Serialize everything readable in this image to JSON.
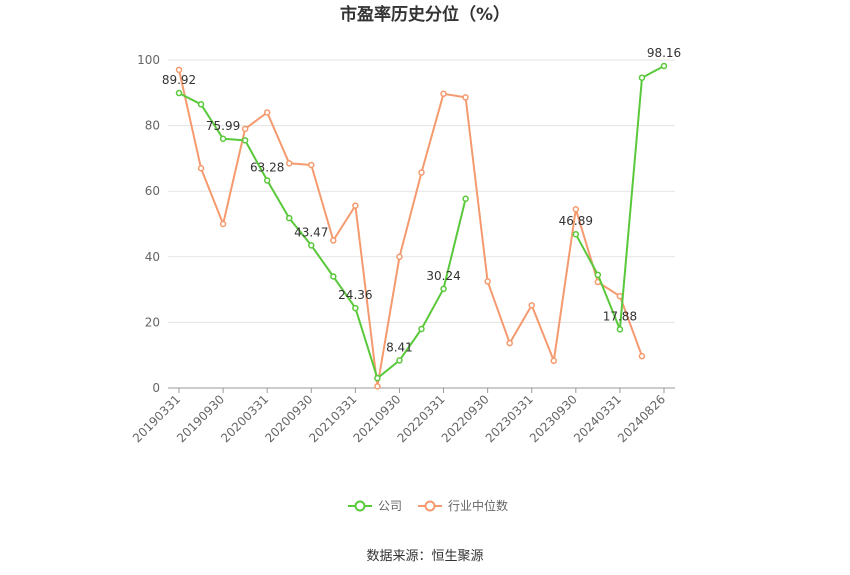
{
  "chart_data": {
    "type": "line",
    "title": "市盈率历史分位（%）",
    "ylim": [
      0,
      100
    ],
    "yticks": [
      0,
      20,
      40,
      60,
      80,
      100
    ],
    "x": [
      "20190331",
      "20190630",
      "20190930",
      "20191231",
      "20200331",
      "20200630",
      "20200930",
      "20201231",
      "20210331",
      "20210630",
      "20210930",
      "20211231",
      "20220331",
      "20220630",
      "20220930",
      "20221231",
      "20230331",
      "20230630",
      "20230930",
      "20231231",
      "20240331",
      "20240630",
      "20240826"
    ],
    "xtick_labels": [
      "20190331",
      "20190930",
      "20200331",
      "20200930",
      "20210331",
      "20210930",
      "20220331",
      "20220930",
      "20230331",
      "20230930",
      "20240331",
      "20240826"
    ],
    "series": [
      {
        "name": "公司",
        "color": "#5ac83b",
        "values": [
          89.92,
          86.5,
          75.99,
          75.5,
          63.28,
          51.8,
          43.47,
          34.0,
          24.36,
          3.0,
          8.41,
          18.0,
          30.24,
          57.7,
          null,
          null,
          null,
          null,
          46.89,
          34.5,
          17.88,
          94.6,
          98.16
        ],
        "labels": [
          {
            "index": 0,
            "text": "89.92"
          },
          {
            "index": 2,
            "text": "75.99"
          },
          {
            "index": 4,
            "text": "63.28"
          },
          {
            "index": 6,
            "text": "43.47"
          },
          {
            "index": 8,
            "text": "24.36"
          },
          {
            "index": 10,
            "text": "8.41"
          },
          {
            "index": 12,
            "text": "30.24"
          },
          {
            "index": 18,
            "text": "46.89"
          },
          {
            "index": 20,
            "text": "17.88"
          },
          {
            "index": 22,
            "text": "98.16"
          }
        ]
      },
      {
        "name": "行业中位数",
        "color": "#f59a6e",
        "values": [
          97.0,
          67.0,
          50.0,
          79.0,
          84.0,
          68.5,
          68.0,
          45.0,
          55.6,
          0.5,
          40.0,
          65.7,
          89.7,
          88.6,
          32.5,
          13.7,
          25.2,
          8.3,
          54.5,
          32.3,
          28.0,
          9.7,
          null
        ],
        "labels": []
      }
    ],
    "legend_position": "bottom",
    "grid": true
  },
  "footer": {
    "source": "数据来源：恒生聚源"
  }
}
